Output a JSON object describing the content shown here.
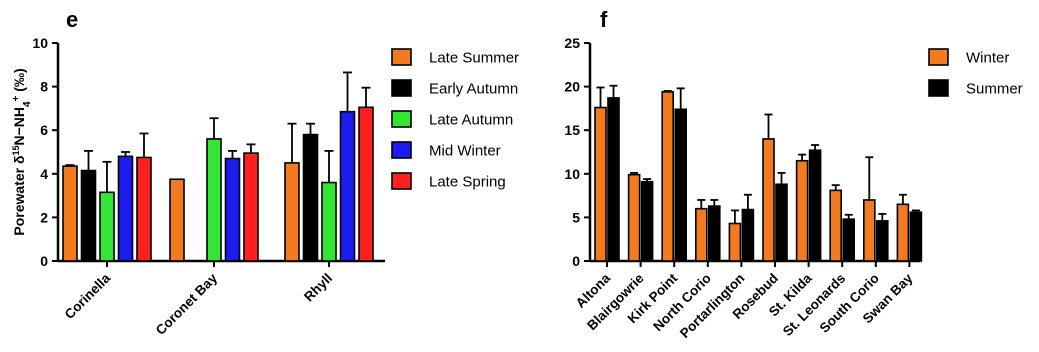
{
  "chart_data": [
    {
      "panel": "e",
      "type": "bar",
      "ylabel_parts": [
        "Porewater δ",
        "15",
        "N−NH",
        "4",
        "+",
        " (‰)"
      ],
      "ylim": [
        0,
        10
      ],
      "yticks": [
        0,
        2,
        4,
        6,
        8,
        10
      ],
      "categories": [
        "Corinella",
        "Coronet Bay",
        "Rhyll"
      ],
      "legend_position": "right",
      "series": [
        {
          "name": "Late Summer",
          "color": "#f47a20",
          "values": [
            4.35,
            3.75,
            4.5
          ],
          "errors": [
            0.05,
            0.0,
            1.8
          ]
        },
        {
          "name": "Early Autumn",
          "color": "#000000",
          "values": [
            4.15,
            null,
            5.8
          ],
          "errors": [
            0.9,
            null,
            0.5
          ]
        },
        {
          "name": "Late Autumn",
          "color": "#33e633",
          "values": [
            3.15,
            5.6,
            3.6
          ],
          "errors": [
            1.4,
            0.95,
            1.45
          ]
        },
        {
          "name": "Mid Winter",
          "color": "#1c1cf0",
          "values": [
            4.8,
            4.7,
            6.85
          ],
          "errors": [
            0.2,
            0.35,
            1.8
          ]
        },
        {
          "name": "Late Spring",
          "color": "#ff2020",
          "values": [
            4.75,
            4.95,
            7.05
          ],
          "errors": [
            1.1,
            0.4,
            0.9
          ]
        }
      ]
    },
    {
      "panel": "f",
      "type": "bar",
      "ylim": [
        0,
        25
      ],
      "yticks": [
        0,
        5,
        10,
        15,
        20,
        25
      ],
      "categories": [
        "Altona",
        "Blairgowrie",
        "Kirk Point",
        "North Corio",
        "Portarlington",
        "Rosebud",
        "St. Kilda",
        "St. Leonards",
        "South Corio",
        "Swan Bay"
      ],
      "legend_position": "right",
      "series": [
        {
          "name": "Winter",
          "color": "#f47a20",
          "values": [
            17.6,
            9.9,
            19.4,
            6.0,
            4.3,
            14.0,
            11.5,
            8.1,
            7.0,
            6.5
          ],
          "errors": [
            2.3,
            0.2,
            0.1,
            1.0,
            1.5,
            2.8,
            0.7,
            0.6,
            4.9,
            1.1
          ]
        },
        {
          "name": "Summer",
          "color": "#000000",
          "values": [
            18.7,
            9.1,
            17.4,
            6.3,
            5.9,
            8.8,
            12.7,
            4.8,
            4.6,
            5.6
          ],
          "errors": [
            1.4,
            0.3,
            2.4,
            0.7,
            1.7,
            1.3,
            0.6,
            0.5,
            0.8,
            0.2
          ]
        }
      ]
    }
  ]
}
